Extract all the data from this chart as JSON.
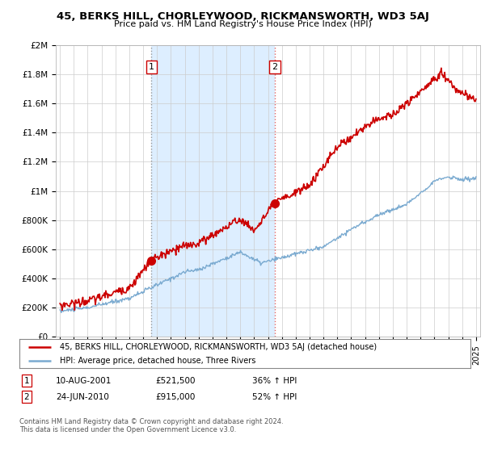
{
  "title": "45, BERKS HILL, CHORLEYWOOD, RICKMANSWORTH, WD3 5AJ",
  "subtitle": "Price paid vs. HM Land Registry's House Price Index (HPI)",
  "legend_line1": "45, BERKS HILL, CHORLEYWOOD, RICKMANSWORTH, WD3 5AJ (detached house)",
  "legend_line2": "HPI: Average price, detached house, Three Rivers",
  "footer": "Contains HM Land Registry data © Crown copyright and database right 2024.\nThis data is licensed under the Open Government Licence v3.0.",
  "annotation1_date": "10-AUG-2001",
  "annotation1_price": "£521,500",
  "annotation1_hpi": "36% ↑ HPI",
  "annotation2_date": "24-JUN-2010",
  "annotation2_price": "£915,000",
  "annotation2_hpi": "52% ↑ HPI",
  "red_color": "#cc0000",
  "blue_color": "#7aaad0",
  "shade_color": "#ddeeff",
  "plot_bg_color": "#ffffff",
  "grid_color": "#cccccc",
  "ylim": [
    0,
    2000000
  ],
  "yticks": [
    0,
    200000,
    400000,
    600000,
    800000,
    1000000,
    1200000,
    1400000,
    1600000,
    1800000,
    2000000
  ],
  "ytick_labels": [
    "£0",
    "£200K",
    "£400K",
    "£600K",
    "£800K",
    "£1M",
    "£1.2M",
    "£1.4M",
    "£1.6M",
    "£1.8M",
    "£2M"
  ],
  "sale1_year": 2001.6,
  "sale1_price": 521500,
  "sale2_year": 2010.5,
  "sale2_price": 915000,
  "xmin": 1995,
  "xmax": 2025
}
